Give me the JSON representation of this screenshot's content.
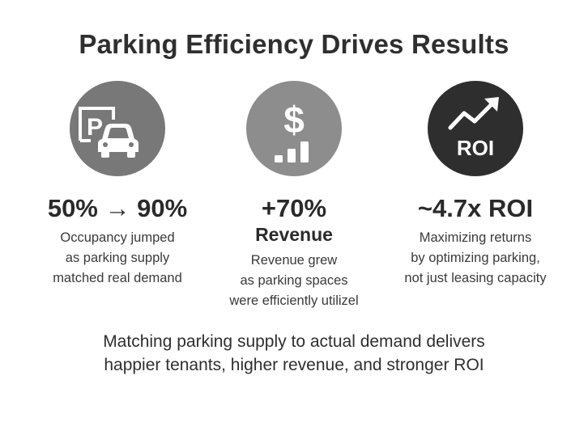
{
  "title": "Parking Efficiency Drives Results",
  "cards": [
    {
      "icon": "parking-car-icon",
      "metric": "50% → 90%",
      "description_lines": [
        "Occupancy jumped",
        "as parking supply",
        "matched real demand"
      ]
    },
    {
      "icon": "dollar-bar-chart-icon",
      "metric": "+70%",
      "sub_metric": "Revenue",
      "description_lines": [
        "Revenue grew",
        "as parking spaces",
        "were efficiently utilizel"
      ]
    },
    {
      "icon": "roi-trend-icon",
      "icon_text": "ROI",
      "metric": "~4.7x ROI",
      "description_lines": [
        "Maximizing returns",
        "by optimizing parking,",
        "not just leasing capacity"
      ]
    }
  ],
  "footer_lines": [
    "Matching parking supply to actual demand delivers",
    "happier tenants, higher revenue, and stronger ROI"
  ],
  "colors": {
    "circle_1": "#787878",
    "circle_2": "#8d8d8d",
    "circle_3": "#2e2e2e",
    "text": "#2b2b2b"
  }
}
